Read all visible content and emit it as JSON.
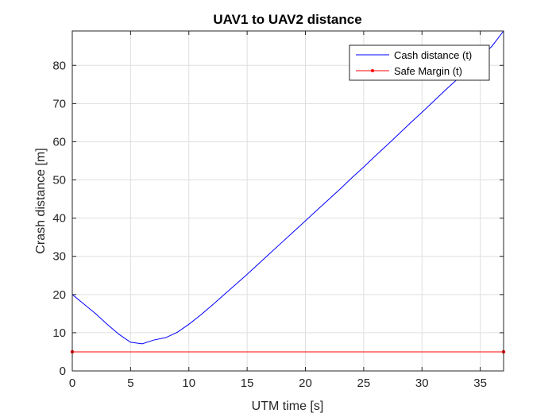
{
  "chart_data": {
    "type": "line",
    "title": "UAV1 to UAV2 distance",
    "xlabel": "UTM time [s]",
    "ylabel": "Crash distance [m]",
    "xlim": [
      0,
      37
    ],
    "ylim": [
      0,
      89
    ],
    "xticks": [
      0,
      5,
      10,
      15,
      20,
      25,
      30,
      35
    ],
    "yticks": [
      0,
      10,
      20,
      30,
      40,
      50,
      60,
      70,
      80
    ],
    "grid": true,
    "legend_position": "top-right",
    "series": [
      {
        "name": "Cash distance (t)",
        "color": "#0000ff",
        "marker": "none",
        "x": [
          0,
          1,
          2,
          3,
          4,
          5,
          6,
          7,
          8,
          9,
          10,
          11,
          12,
          13,
          14,
          15,
          16,
          17,
          18,
          19,
          20,
          21,
          22,
          23,
          24,
          25,
          26,
          27,
          28,
          29,
          30,
          31,
          32,
          33,
          34,
          35,
          36,
          37
        ],
        "values": [
          20,
          17.5,
          15,
          12.2,
          9.6,
          7.5,
          7.1,
          8.1,
          8.7,
          10.1,
          12.2,
          14.6,
          17.2,
          19.9,
          22.6,
          25.3,
          28.1,
          30.9,
          33.7,
          36.5,
          39.3,
          42.1,
          44.9,
          47.7,
          50.6,
          53.4,
          56.3,
          59.1,
          62.0,
          64.9,
          67.7,
          70.6,
          73.5,
          76.3,
          79.2,
          82.1,
          85.0,
          89.0
        ]
      },
      {
        "name": "Safe Margin (t)",
        "color": "#ff0000",
        "marker": "dot",
        "x": [
          0,
          37
        ],
        "values": [
          5,
          5
        ]
      }
    ]
  }
}
